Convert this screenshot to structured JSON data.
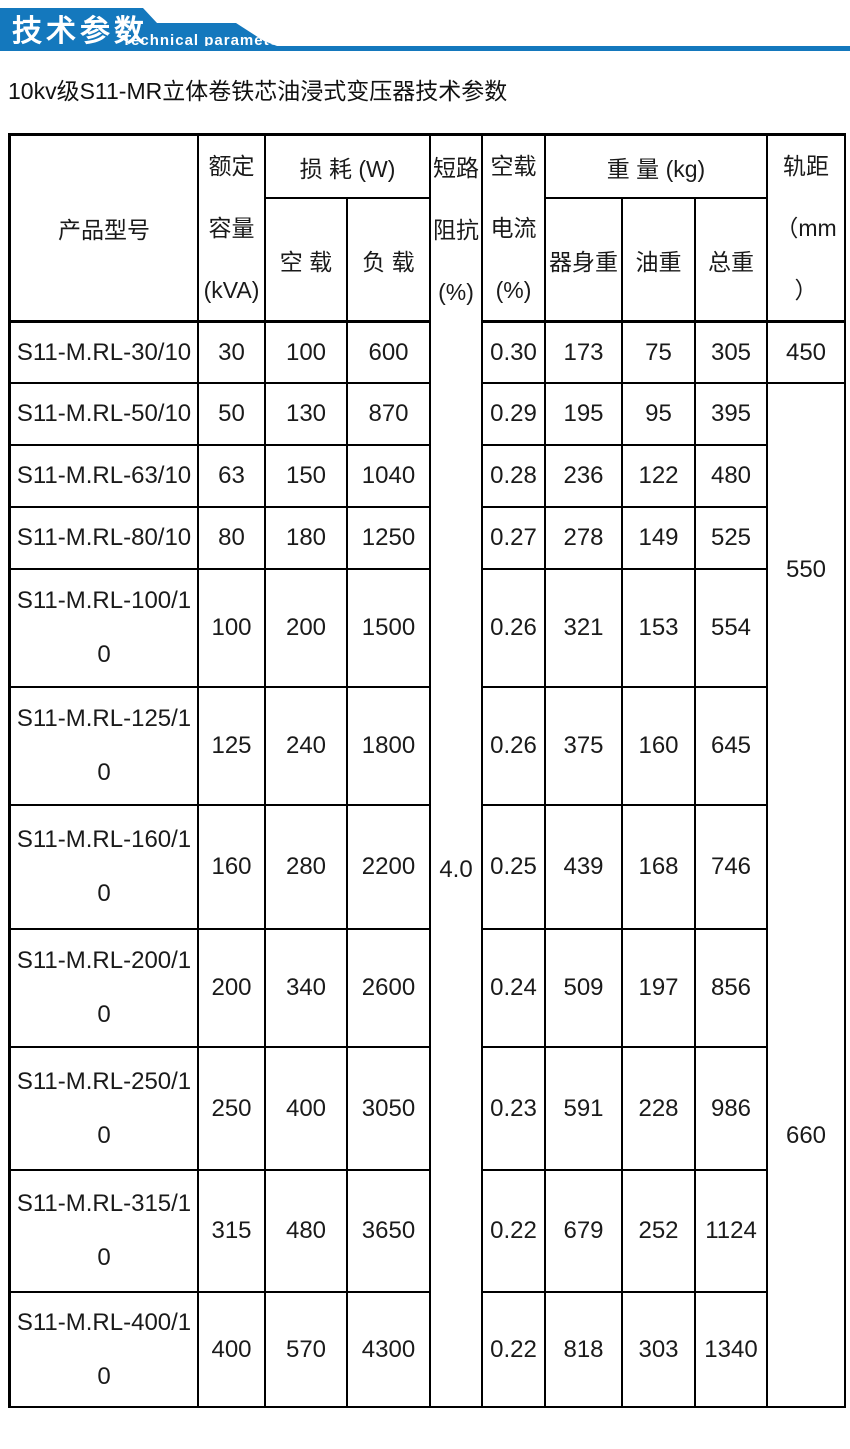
{
  "banner": {
    "title_cn": "技术参数",
    "title_en": "Technical parameter",
    "accent_color": "#1478bd"
  },
  "subtitle": "10kv级S11-MR立体卷铁芯油浸式变压器技术参数",
  "table": {
    "headers": {
      "product_model": "产品型号",
      "rated_capacity": "额定\n容量\n(kVA)",
      "loss_group": "损 耗 (W)",
      "loss_no_load": "空 载",
      "loss_load": "负 载",
      "impedance": "短路\n阻抗\n(%)",
      "no_load_current": "空载\n电流\n(%)",
      "weight_group": "重 量 (kg)",
      "body_weight": "器身重",
      "oil_weight": "油重",
      "total_weight": "总重",
      "gauge": "轨距\n（mm\n）"
    },
    "impedance_value": "4.0",
    "gauge": {
      "row1": "450",
      "mid": "550",
      "low": "660"
    },
    "rows": [
      {
        "model": "S11-M.RL-30/10",
        "capacity": "30",
        "no_load_loss": "100",
        "load_loss": "600",
        "no_load_current": "0.30",
        "body": "173",
        "oil": "75",
        "total": "305"
      },
      {
        "model": "S11-M.RL-50/10",
        "capacity": "50",
        "no_load_loss": "130",
        "load_loss": "870",
        "no_load_current": "0.29",
        "body": "195",
        "oil": "95",
        "total": "395"
      },
      {
        "model": "S11-M.RL-63/10",
        "capacity": "63",
        "no_load_loss": "150",
        "load_loss": "1040",
        "no_load_current": "0.28",
        "body": "236",
        "oil": "122",
        "total": "480"
      },
      {
        "model": "S11-M.RL-80/10",
        "capacity": "80",
        "no_load_loss": "180",
        "load_loss": "1250",
        "no_load_current": "0.27",
        "body": "278",
        "oil": "149",
        "total": "525"
      },
      {
        "model": "S11-M.RL-100/1\n0",
        "capacity": "100",
        "no_load_loss": "200",
        "load_loss": "1500",
        "no_load_current": "0.26",
        "body": "321",
        "oil": "153",
        "total": "554"
      },
      {
        "model": "S11-M.RL-125/1\n0",
        "capacity": "125",
        "no_load_loss": "240",
        "load_loss": "1800",
        "no_load_current": "0.26",
        "body": "375",
        "oil": "160",
        "total": "645"
      },
      {
        "model": "S11-M.RL-160/1\n0",
        "capacity": "160",
        "no_load_loss": "280",
        "load_loss": "2200",
        "no_load_current": "0.25",
        "body": "439",
        "oil": "168",
        "total": "746"
      },
      {
        "model": "S11-M.RL-200/1\n0",
        "capacity": "200",
        "no_load_loss": "340",
        "load_loss": "2600",
        "no_load_current": "0.24",
        "body": "509",
        "oil": "197",
        "total": "856"
      },
      {
        "model": "S11-M.RL-250/1\n0",
        "capacity": "250",
        "no_load_loss": "400",
        "load_loss": "3050",
        "no_load_current": "0.23",
        "body": "591",
        "oil": "228",
        "total": "986"
      },
      {
        "model": "S11-M.RL-315/1\n0",
        "capacity": "315",
        "no_load_loss": "480",
        "load_loss": "3650",
        "no_load_current": "0.22",
        "body": "679",
        "oil": "252",
        "total": "1124"
      },
      {
        "model": "S11-M.RL-400/1\n0",
        "capacity": "400",
        "no_load_loss": "570",
        "load_loss": "4300",
        "no_load_current": "0.22",
        "body": "818",
        "oil": "303",
        "total": "1340"
      }
    ]
  }
}
